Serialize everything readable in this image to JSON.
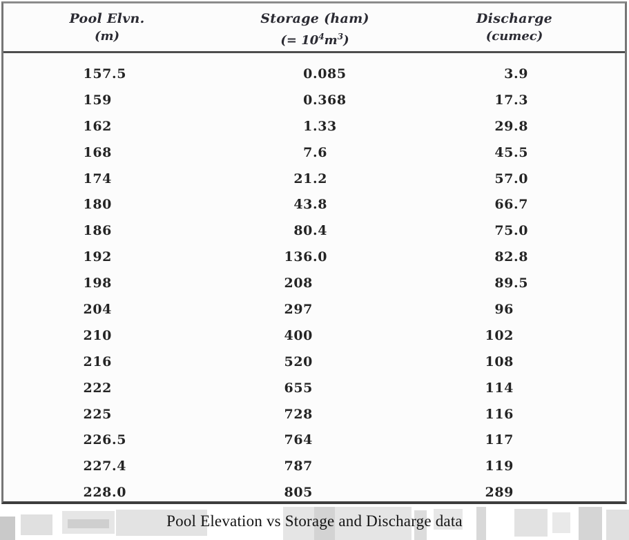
{
  "table": {
    "headers": {
      "pool": {
        "line1": "Pool Elvn.",
        "line2": "(m)"
      },
      "storage": {
        "line1": "Storage (ham)",
        "line2_parts": {
          "pre": "(= 10",
          "exp1": "4",
          "mid": "m",
          "exp2": "3",
          "post": ")"
        }
      },
      "discharge": {
        "line1": "Discharge",
        "line2": "(cumec)"
      }
    },
    "columns": [
      "pool_elevation_m",
      "storage_ham_1e4_m3",
      "discharge_cumec"
    ],
    "rows": [
      [
        "157.5",
        "0.085",
        "3.9"
      ],
      [
        "159",
        "0.368",
        "17.3"
      ],
      [
        "162",
        "1.33",
        "29.8"
      ],
      [
        "168",
        "7.6",
        "45.5"
      ],
      [
        "174",
        "21.2",
        "57.0"
      ],
      [
        "180",
        "43.8",
        "66.7"
      ],
      [
        "186",
        "80.4",
        "75.0"
      ],
      [
        "192",
        "136.0",
        "82.8"
      ],
      [
        "198",
        "208",
        "89.5"
      ],
      [
        "204",
        "297",
        "96"
      ],
      [
        "210",
        "400",
        "102"
      ],
      [
        "216",
        "520",
        "108"
      ],
      [
        "222",
        "655",
        "114"
      ],
      [
        "225",
        "728",
        "116"
      ],
      [
        "226.5",
        "764",
        "117"
      ],
      [
        "227.4",
        "787",
        "119"
      ],
      [
        "228.0",
        "805",
        "289"
      ]
    ]
  },
  "caption": "Pool Elevation vs Storage and Discharge data",
  "colors": {
    "outer_border": "#767676",
    "bottom_border": "#3d3d3d",
    "header_rule": "#4d4d4d",
    "text": "#242424",
    "artifact_gray": "#e0e0e0"
  }
}
